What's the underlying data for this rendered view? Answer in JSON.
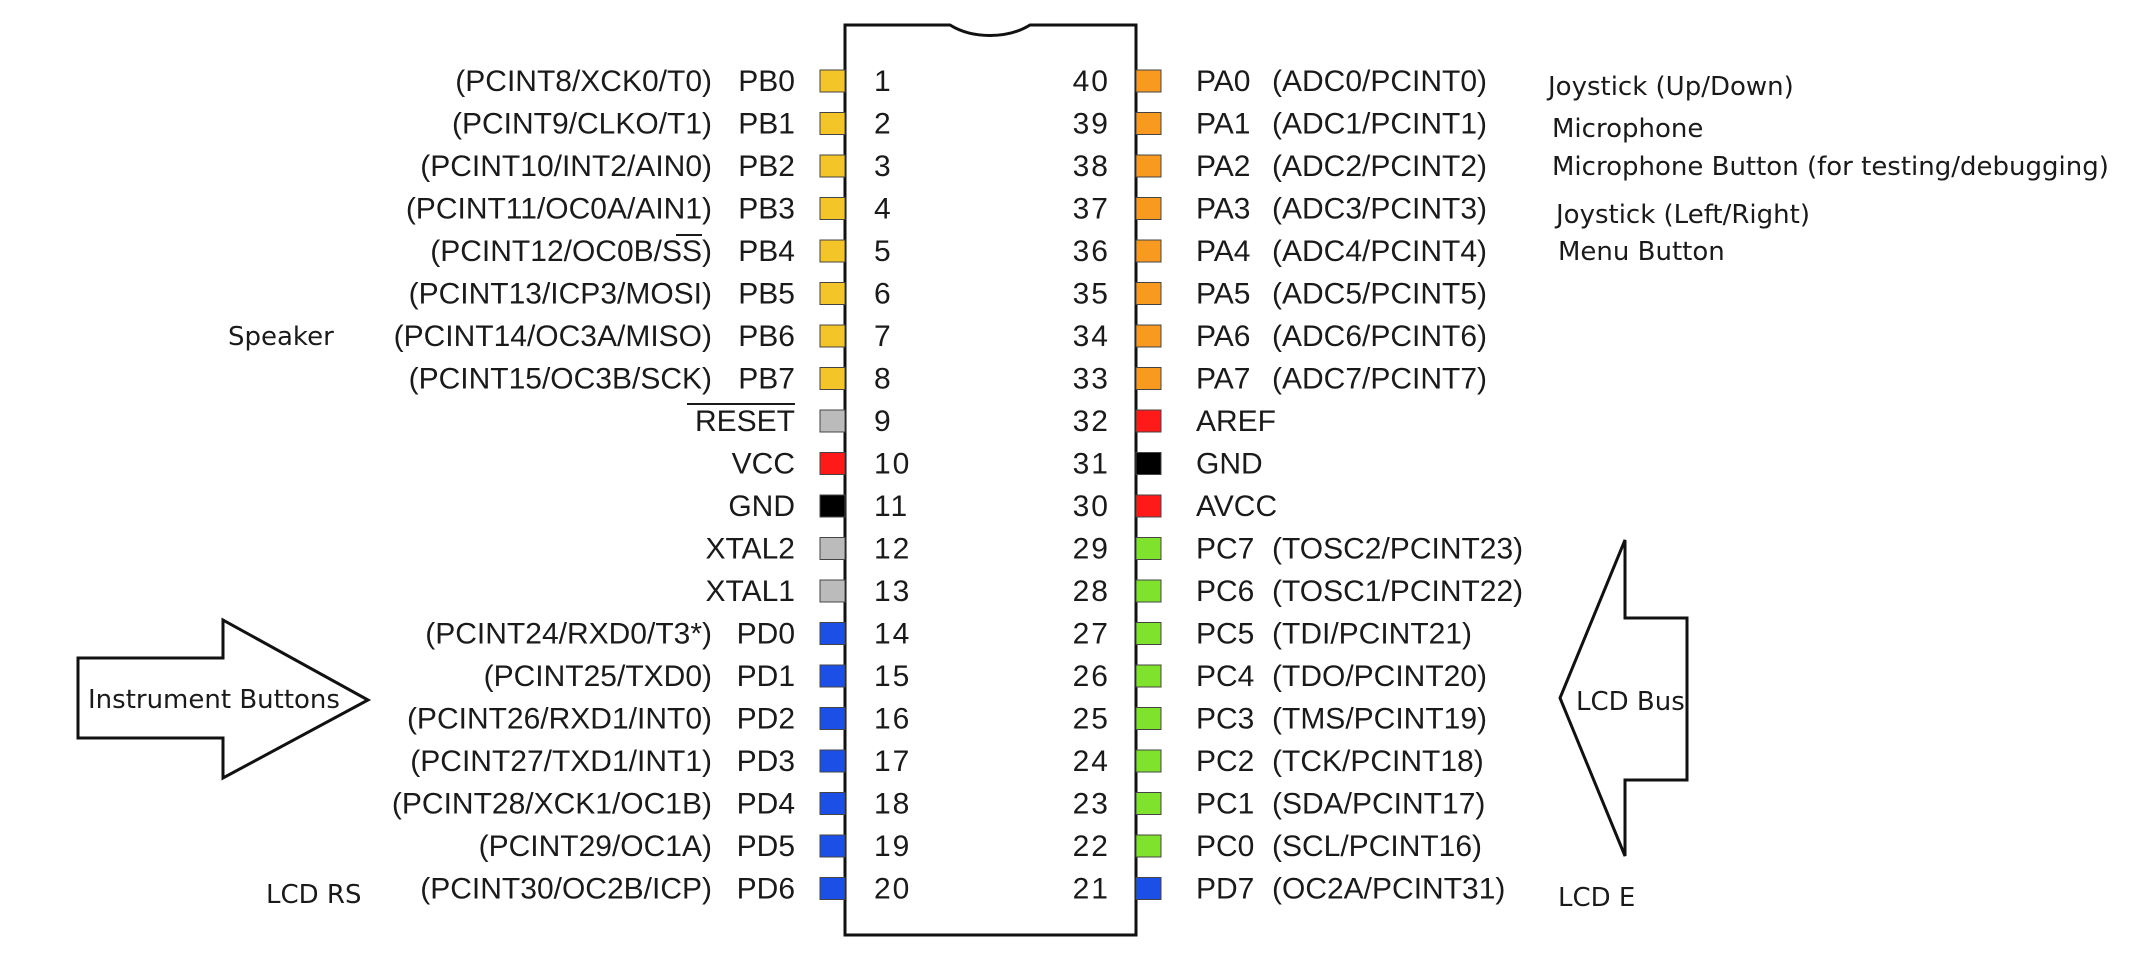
{
  "colors": {
    "port_b": "#f4c528",
    "port_a": "#f79a1f",
    "port_c": "#7fe22c",
    "port_d": "#1b4fe6",
    "power": "#ff1a1a",
    "ground": "#000000",
    "misc": "#bbbbbb",
    "outline": "#111111"
  },
  "left_pins": [
    {
      "num": "1",
      "name": "PB0",
      "func": "(PCINT8/XCK0/T0)",
      "color": "port_b"
    },
    {
      "num": "2",
      "name": "PB1",
      "func": "(PCINT9/CLKO/T1)",
      "color": "port_b"
    },
    {
      "num": "3",
      "name": "PB2",
      "func": "(PCINT10/INT2/AIN0)",
      "color": "port_b"
    },
    {
      "num": "4",
      "name": "PB3",
      "func": "(PCINT11/OC0A/AIN1)",
      "color": "port_b"
    },
    {
      "num": "5",
      "name": "PB4",
      "func": "(PCINT12/OC0B/SS)",
      "color": "port_b"
    },
    {
      "num": "6",
      "name": "PB5",
      "func": "(PCINT13/ICP3/MOSI)",
      "color": "port_b"
    },
    {
      "num": "7",
      "name": "PB6",
      "func": "(PCINT14/OC3A/MISO)",
      "color": "port_b"
    },
    {
      "num": "8",
      "name": "PB7",
      "func": "(PCINT15/OC3B/SCK)",
      "color": "port_b"
    },
    {
      "num": "9",
      "name": "RESET",
      "func": "",
      "color": "misc"
    },
    {
      "num": "10",
      "name": "VCC",
      "func": "",
      "color": "power"
    },
    {
      "num": "11",
      "name": "GND",
      "func": "",
      "color": "ground"
    },
    {
      "num": "12",
      "name": "XTAL2",
      "func": "",
      "color": "misc"
    },
    {
      "num": "13",
      "name": "XTAL1",
      "func": "",
      "color": "misc"
    },
    {
      "num": "14",
      "name": "PD0",
      "func": "(PCINT24/RXD0/T3*)",
      "color": "port_d"
    },
    {
      "num": "15",
      "name": "PD1",
      "func": "(PCINT25/TXD0)",
      "color": "port_d"
    },
    {
      "num": "16",
      "name": "PD2",
      "func": "(PCINT26/RXD1/INT0)",
      "color": "port_d"
    },
    {
      "num": "17",
      "name": "PD3",
      "func": "(PCINT27/TXD1/INT1)",
      "color": "port_d"
    },
    {
      "num": "18",
      "name": "PD4",
      "func": "(PCINT28/XCK1/OC1B)",
      "color": "port_d"
    },
    {
      "num": "19",
      "name": "PD5",
      "func": "(PCINT29/OC1A)",
      "color": "port_d"
    },
    {
      "num": "20",
      "name": "PD6",
      "func": "(PCINT30/OC2B/ICP)",
      "color": "port_d"
    }
  ],
  "right_pins": [
    {
      "num": "40",
      "name": "PA0",
      "func": "(ADC0/PCINT0)",
      "color": "port_a"
    },
    {
      "num": "39",
      "name": "PA1",
      "func": "(ADC1/PCINT1)",
      "color": "port_a"
    },
    {
      "num": "38",
      "name": "PA2",
      "func": "(ADC2/PCINT2)",
      "color": "port_a"
    },
    {
      "num": "37",
      "name": "PA3",
      "func": "(ADC3/PCINT3)",
      "color": "port_a"
    },
    {
      "num": "36",
      "name": "PA4",
      "func": "(ADC4/PCINT4)",
      "color": "port_a"
    },
    {
      "num": "35",
      "name": "PA5",
      "func": "(ADC5/PCINT5)",
      "color": "port_a"
    },
    {
      "num": "34",
      "name": "PA6",
      "func": "(ADC6/PCINT6)",
      "color": "port_a"
    },
    {
      "num": "33",
      "name": "PA7",
      "func": "(ADC7/PCINT7)",
      "color": "port_a"
    },
    {
      "num": "32",
      "name": "AREF",
      "func": "",
      "color": "power"
    },
    {
      "num": "31",
      "name": "GND",
      "func": "",
      "color": "ground"
    },
    {
      "num": "30",
      "name": "AVCC",
      "func": "",
      "color": "power"
    },
    {
      "num": "29",
      "name": "PC7",
      "func": "(TOSC2/PCINT23)",
      "color": "port_c"
    },
    {
      "num": "28",
      "name": "PC6",
      "func": "(TOSC1/PCINT22)",
      "color": "port_c"
    },
    {
      "num": "27",
      "name": "PC5",
      "func": "(TDI/PCINT21)",
      "color": "port_c"
    },
    {
      "num": "26",
      "name": "PC4",
      "func": "(TDO/PCINT20)",
      "color": "port_c"
    },
    {
      "num": "25",
      "name": "PC3",
      "func": "(TMS/PCINT19)",
      "color": "port_c"
    },
    {
      "num": "24",
      "name": "PC2",
      "func": "(TCK/PCINT18)",
      "color": "port_c"
    },
    {
      "num": "23",
      "name": "PC1",
      "func": "(SDA/PCINT17)",
      "color": "port_c"
    },
    {
      "num": "22",
      "name": "PC0",
      "func": "(SCL/PCINT16)",
      "color": "port_c"
    },
    {
      "num": "21",
      "name": "PD7",
      "func": "(OC2A/PCINT31)",
      "color": "port_d"
    }
  ],
  "notes": {
    "speaker": "Speaker",
    "lcd_rs": "LCD RS",
    "joystick_ud": "Joystick (Up/Down)",
    "microphone": "Microphone",
    "mic_button": "Microphone Button (for testing/debugging)",
    "joystick_lr": "Joystick (Left/Right)",
    "menu_button": "Menu Button",
    "lcd_e": "LCD E"
  },
  "arrows": {
    "instrument_buttons": "Instrument Buttons",
    "lcd_bus": "LCD Bus"
  }
}
